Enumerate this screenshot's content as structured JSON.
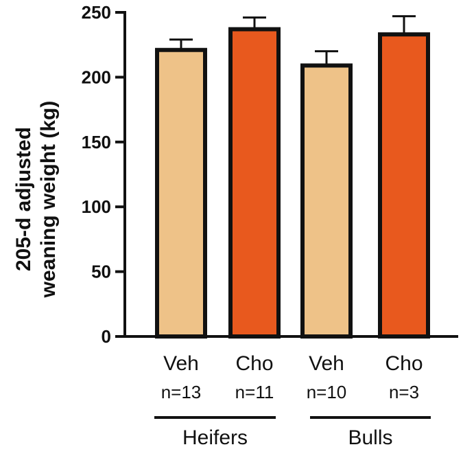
{
  "chart_data": {
    "type": "bar",
    "ylabel_lines": [
      "205-d adjusted",
      "weaning weight (kg)"
    ],
    "ylim": [
      0,
      250
    ],
    "yticks": [
      "0",
      "50",
      "100",
      "150",
      "200",
      "250"
    ],
    "grid": false,
    "bars": [
      {
        "category": "Veh",
        "n_label": "n=13",
        "group": "Heifers",
        "value": 221,
        "error": 8,
        "color": "#EEC288"
      },
      {
        "category": "Cho",
        "n_label": "n=11",
        "group": "Heifers",
        "value": 237,
        "error": 9,
        "color": "#E8591E"
      },
      {
        "category": "Veh",
        "n_label": "n=10",
        "group": "Bulls",
        "value": 209,
        "error": 11,
        "color": "#EEC288"
      },
      {
        "category": "Cho",
        "n_label": "n=3",
        "group": "Bulls",
        "value": 233,
        "error": 14,
        "color": "#E8591E"
      }
    ],
    "groups": [
      "Heifers",
      "Bulls"
    ]
  }
}
